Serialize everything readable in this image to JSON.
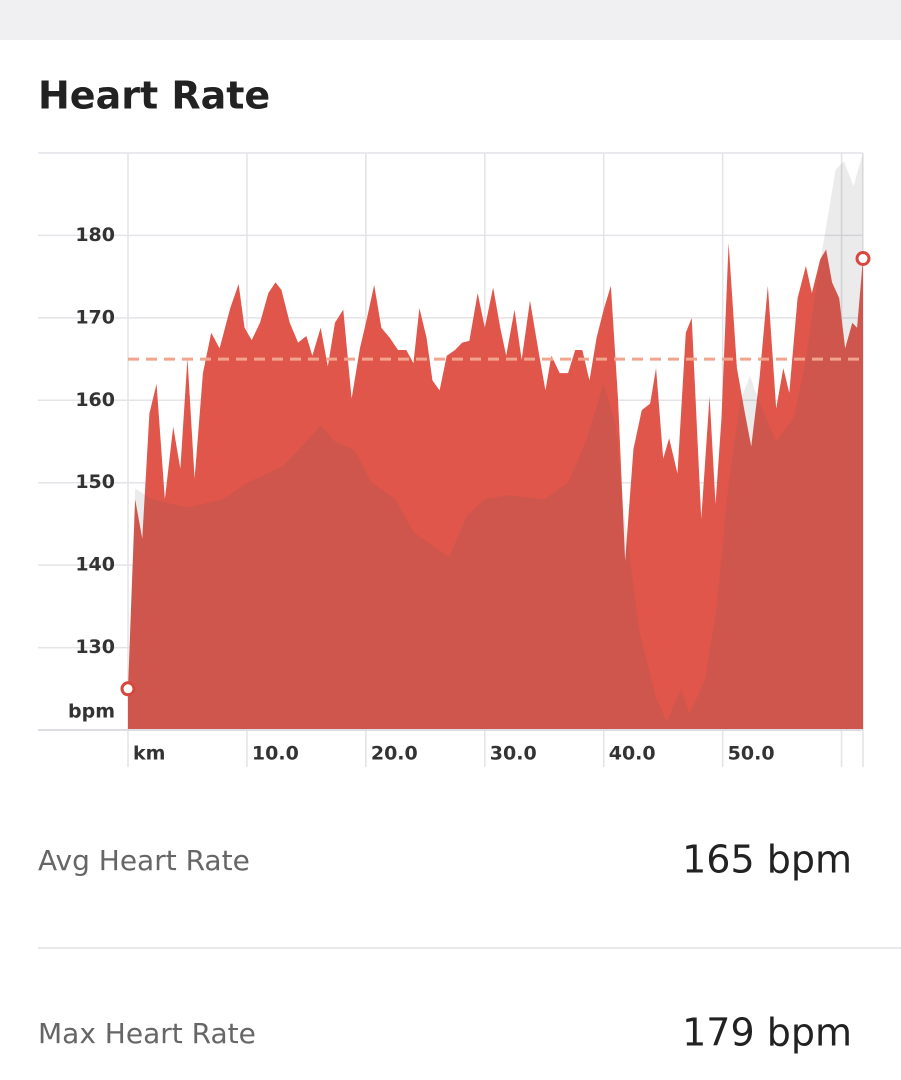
{
  "chart_data": {
    "type": "area",
    "title": "Heart Rate",
    "x_label": "km",
    "y_label": "bpm",
    "xlim": [
      0,
      61.8
    ],
    "ylim": [
      120,
      190
    ],
    "xticks": [
      {
        "value": 0,
        "label": null
      },
      {
        "value": 10,
        "label": "10.0"
      },
      {
        "value": 20,
        "label": "20.0"
      },
      {
        "value": 30,
        "label": "30.0"
      },
      {
        "value": 40,
        "label": "40.0"
      },
      {
        "value": 50,
        "label": "50.0"
      },
      {
        "value": 60,
        "label": null
      }
    ],
    "yticks": [
      130,
      140,
      150,
      160,
      170,
      180
    ],
    "grid": true,
    "avg_line": {
      "value": 165,
      "color": "#f2a58e"
    },
    "series": [
      {
        "color": "#e0564a",
        "x": [
          0,
          0.6,
          1.2,
          1.8,
          2.4,
          3.1,
          3.8,
          4.4,
          5.0,
          5.6,
          6.3,
          7.0,
          7.7,
          8.6,
          9.3,
          9.8,
          10.4,
          11.1,
          11.8,
          12.4,
          12.9,
          13.6,
          14.3,
          15.0,
          15.5,
          16.2,
          16.8,
          17.4,
          18.1,
          18.8,
          19.5,
          20.1,
          20.7,
          21.3,
          22.0,
          22.7,
          23.4,
          24.0,
          24.5,
          25.1,
          25.6,
          26.2,
          26.8,
          27.5,
          28.1,
          28.7,
          29.4,
          30.0,
          30.7,
          31.3,
          31.8,
          32.5,
          33.1,
          33.8,
          34.5,
          35.1,
          35.6,
          36.3,
          37.0,
          37.6,
          38.2,
          38.8,
          39.4,
          40.0,
          40.6,
          41.2,
          41.8,
          42.5,
          43.2,
          43.9,
          44.4,
          45.0,
          45.5,
          46.2,
          46.9,
          47.4,
          48.2,
          48.9,
          49.4,
          49.9,
          50.5,
          51.2,
          51.8,
          52.4,
          53.1,
          53.8,
          54.5,
          55.1,
          55.6,
          56.3,
          57.0,
          57.5,
          58.2,
          58.7,
          59.2,
          59.8,
          60.3,
          60.9,
          61.3,
          61.8
        ],
        "values": [
          125,
          148,
          143.2,
          158.4,
          162,
          148,
          156.8,
          151.7,
          165.1,
          150.5,
          163.3,
          168.2,
          166.3,
          171.2,
          174.1,
          168.8,
          167.3,
          169.4,
          173,
          174.3,
          173.4,
          169.4,
          167,
          167.8,
          165.4,
          168.8,
          164.1,
          169.4,
          171,
          160.2,
          166.3,
          170,
          174,
          168.8,
          167.6,
          166.1,
          166.1,
          164.5,
          171.2,
          167.6,
          162.4,
          161.2,
          165.4,
          166.1,
          167,
          167.2,
          173,
          168.8,
          173.7,
          168.8,
          165.4,
          171,
          164.9,
          172.1,
          166.1,
          161.2,
          165.4,
          163.3,
          163.3,
          166.1,
          166.1,
          162.4,
          167.6,
          171,
          173.9,
          160.2,
          140.5,
          154.1,
          158.8,
          159.6,
          163.9,
          152.9,
          155.4,
          151.1,
          168.2,
          170,
          145.6,
          160.5,
          147.4,
          157.8,
          179.1,
          163.9,
          159,
          154.4,
          162.7,
          173.9,
          159,
          163.9,
          160.9,
          172.4,
          176.3,
          173,
          177.1,
          178.3,
          174.3,
          172.4,
          166.3,
          169.4,
          168.8,
          177.2
        ]
      },
      {
        "color": "rgba(90,90,90,0.12)",
        "x": [
          0,
          0.6,
          2,
          5,
          8,
          10,
          13,
          15,
          16.2,
          17.4,
          19,
          20.5,
          22.5,
          24,
          26,
          27,
          28.5,
          30,
          32,
          35,
          37,
          38.5,
          40,
          41,
          41.8,
          43,
          44.4,
          45.3,
          46.5,
          47.2,
          48.5,
          49.5,
          50.5,
          51.5,
          52.3,
          53,
          54.5,
          56,
          57,
          58,
          59.5,
          60.2,
          61,
          61.8
        ],
        "values": [
          125,
          149.3,
          148,
          147,
          148,
          150,
          152,
          155,
          157,
          155,
          154,
          150,
          148,
          144,
          142,
          141,
          146,
          148,
          148.5,
          148,
          150,
          155,
          162,
          157,
          145,
          132,
          124,
          121,
          125,
          122,
          126,
          135,
          150,
          160,
          163,
          160,
          155,
          158,
          165,
          175,
          188,
          189,
          186,
          190
        ]
      }
    ]
  },
  "stats": [
    {
      "label": "Avg Heart Rate",
      "value": "165 bpm"
    },
    {
      "label": "Max Heart Rate",
      "value": "179 bpm"
    }
  ]
}
